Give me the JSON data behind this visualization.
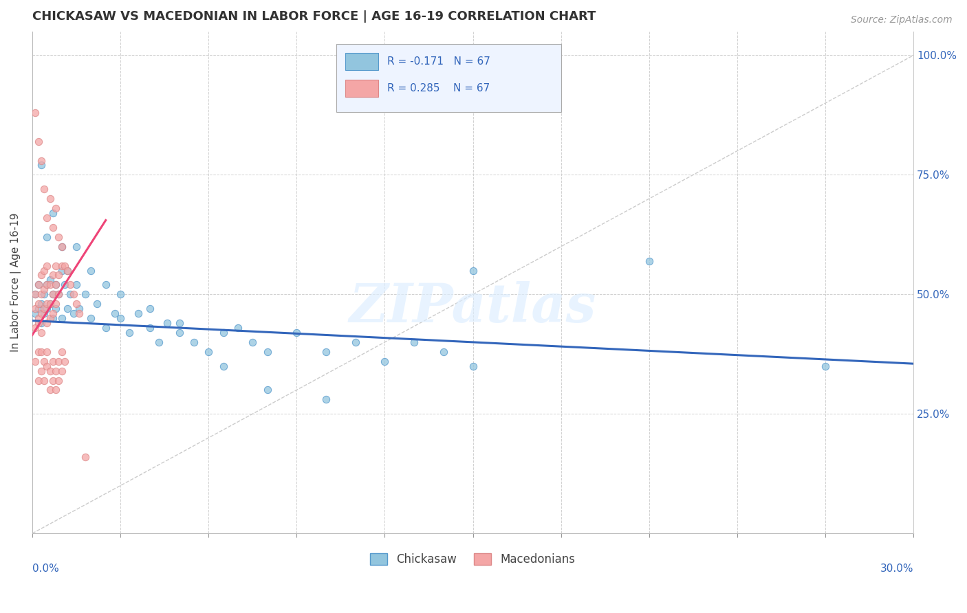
{
  "title": "CHICKASAW VS MACEDONIAN IN LABOR FORCE | AGE 16-19 CORRELATION CHART",
  "source": "Source: ZipAtlas.com",
  "ylabel": "In Labor Force | Age 16-19",
  "right_yticklabels": [
    "",
    "25.0%",
    "50.0%",
    "75.0%",
    "100.0%"
  ],
  "r_chickasaw": -0.171,
  "r_macedonian": 0.285,
  "n": 67,
  "chickasaw_color": "#92c5de",
  "macedonian_color": "#f4a6a6",
  "chickasaw_edge": "#5599cc",
  "macedonian_edge": "#dd8888",
  "trend_chickasaw_color": "#3366bb",
  "trend_macedonian_color": "#ee4477",
  "watermark": "ZIPatlas",
  "xlim": [
    0.0,
    0.3
  ],
  "ylim": [
    0.0,
    1.05
  ],
  "chickasaw_x": [
    0.001,
    0.001,
    0.002,
    0.002,
    0.003,
    0.003,
    0.004,
    0.004,
    0.005,
    0.005,
    0.006,
    0.006,
    0.007,
    0.007,
    0.008,
    0.008,
    0.009,
    0.01,
    0.01,
    0.011,
    0.012,
    0.013,
    0.014,
    0.015,
    0.016,
    0.018,
    0.02,
    0.022,
    0.025,
    0.028,
    0.03,
    0.033,
    0.036,
    0.04,
    0.043,
    0.046,
    0.05,
    0.055,
    0.06,
    0.065,
    0.07,
    0.075,
    0.08,
    0.09,
    0.1,
    0.11,
    0.12,
    0.13,
    0.14,
    0.15,
    0.003,
    0.005,
    0.007,
    0.01,
    0.012,
    0.015,
    0.02,
    0.025,
    0.03,
    0.04,
    0.05,
    0.065,
    0.08,
    0.1,
    0.15,
    0.21,
    0.27
  ],
  "chickasaw_y": [
    0.5,
    0.46,
    0.52,
    0.47,
    0.48,
    0.44,
    0.5,
    0.46,
    0.52,
    0.47,
    0.53,
    0.48,
    0.5,
    0.45,
    0.52,
    0.47,
    0.5,
    0.55,
    0.45,
    0.52,
    0.47,
    0.5,
    0.46,
    0.52,
    0.47,
    0.5,
    0.45,
    0.48,
    0.43,
    0.46,
    0.45,
    0.42,
    0.46,
    0.43,
    0.4,
    0.44,
    0.42,
    0.4,
    0.38,
    0.42,
    0.43,
    0.4,
    0.38,
    0.42,
    0.38,
    0.4,
    0.36,
    0.4,
    0.38,
    0.35,
    0.77,
    0.62,
    0.67,
    0.6,
    0.55,
    0.6,
    0.55,
    0.52,
    0.5,
    0.47,
    0.44,
    0.35,
    0.3,
    0.28,
    0.55,
    0.57,
    0.35
  ],
  "macedonian_x": [
    0.001,
    0.001,
    0.001,
    0.002,
    0.002,
    0.002,
    0.002,
    0.003,
    0.003,
    0.003,
    0.003,
    0.004,
    0.004,
    0.004,
    0.005,
    0.005,
    0.005,
    0.005,
    0.006,
    0.006,
    0.006,
    0.007,
    0.007,
    0.007,
    0.008,
    0.008,
    0.008,
    0.009,
    0.009,
    0.01,
    0.001,
    0.002,
    0.002,
    0.003,
    0.003,
    0.004,
    0.004,
    0.005,
    0.005,
    0.006,
    0.006,
    0.007,
    0.007,
    0.008,
    0.008,
    0.009,
    0.009,
    0.01,
    0.01,
    0.011,
    0.001,
    0.002,
    0.003,
    0.004,
    0.005,
    0.006,
    0.007,
    0.008,
    0.009,
    0.01,
    0.011,
    0.012,
    0.013,
    0.014,
    0.015,
    0.016,
    0.018
  ],
  "macedonian_y": [
    0.43,
    0.47,
    0.5,
    0.44,
    0.48,
    0.52,
    0.45,
    0.46,
    0.5,
    0.54,
    0.42,
    0.47,
    0.51,
    0.55,
    0.44,
    0.48,
    0.52,
    0.56,
    0.48,
    0.52,
    0.45,
    0.5,
    0.54,
    0.46,
    0.52,
    0.56,
    0.48,
    0.54,
    0.5,
    0.56,
    0.36,
    0.38,
    0.32,
    0.34,
    0.38,
    0.36,
    0.32,
    0.35,
    0.38,
    0.34,
    0.3,
    0.36,
    0.32,
    0.34,
    0.3,
    0.36,
    0.32,
    0.34,
    0.38,
    0.36,
    0.88,
    0.82,
    0.78,
    0.72,
    0.66,
    0.7,
    0.64,
    0.68,
    0.62,
    0.6,
    0.56,
    0.55,
    0.52,
    0.5,
    0.48,
    0.46,
    0.16
  ],
  "ck_trend_x": [
    0.0,
    0.3
  ],
  "ck_trend_y": [
    0.445,
    0.355
  ],
  "mk_trend_x": [
    0.0,
    0.025
  ],
  "mk_trend_y": [
    0.415,
    0.655
  ]
}
